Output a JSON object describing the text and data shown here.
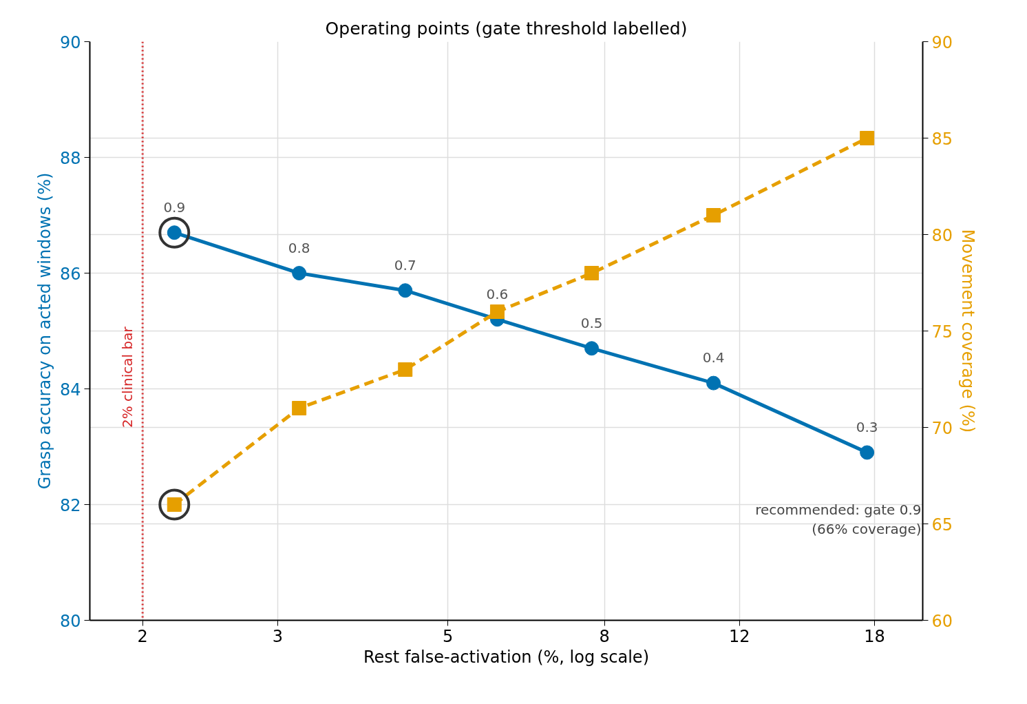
{
  "chart_data": {
    "type": "line",
    "title": "Operating points (gate threshold labelled)",
    "xlabel": "Rest false-activation (%, log scale)",
    "ylabel": "Grasp accuracy on acted windows (%)",
    "y2label": "Movement coverage (%)",
    "x": [
      2.2,
      3.2,
      4.4,
      5.8,
      7.7,
      11.1,
      17.6
    ],
    "log": "x",
    "xlim": [
      1.707,
      20.8
    ],
    "xticks": [
      2,
      3,
      5,
      8,
      12,
      18
    ],
    "ylim": [
      80,
      90
    ],
    "yticks": [
      80,
      82,
      84,
      86,
      88,
      90
    ],
    "y2lim": [
      60,
      90
    ],
    "y2ticks": [
      60,
      65,
      70,
      75,
      80,
      85,
      90
    ],
    "grid": true,
    "series": [
      {
        "color": "#0072b2",
        "marker": "circle",
        "line_style": "solid",
        "values": [
          86.7,
          86.0,
          85.7,
          85.2,
          84.7,
          84.1,
          82.9
        ]
      },
      {
        "axis": "y2",
        "color": "#e69f00",
        "marker": "square",
        "line_style": "dashed",
        "values": [
          66,
          71,
          73,
          76,
          78,
          81,
          85
        ]
      },
      {
        "type": "scatter",
        "color": "#333333",
        "marker": "circle",
        "x": [
          2.2
        ],
        "values": [
          86.7
        ]
      },
      {
        "type": "scatter",
        "axis": "y2",
        "color": "#333333",
        "marker": "circle",
        "x": [
          2.2
        ],
        "values": [
          66
        ]
      }
    ],
    "ref_lines": [
      {
        "axis": "x",
        "value": 2,
        "label": "2% clinical bar",
        "color": "#d62728",
        "line_style": "dotted"
      }
    ],
    "annotations": [
      "recommended: gate 0.9\n(66% coverage)",
      {
        "text": "0.9",
        "x": 2.2,
        "y": 86.7
      },
      {
        "text": "0.8",
        "x": 3.2,
        "y": 86.0
      },
      {
        "text": "0.7",
        "x": 4.4,
        "y": 85.7
      },
      {
        "text": "0.6",
        "x": 5.8,
        "y": 85.2
      },
      {
        "text": "0.5",
        "x": 7.7,
        "y": 84.7
      },
      {
        "text": "0.4",
        "x": 11.1,
        "y": 84.1
      },
      {
        "text": "0.3",
        "x": 17.6,
        "y": 82.9
      }
    ]
  }
}
